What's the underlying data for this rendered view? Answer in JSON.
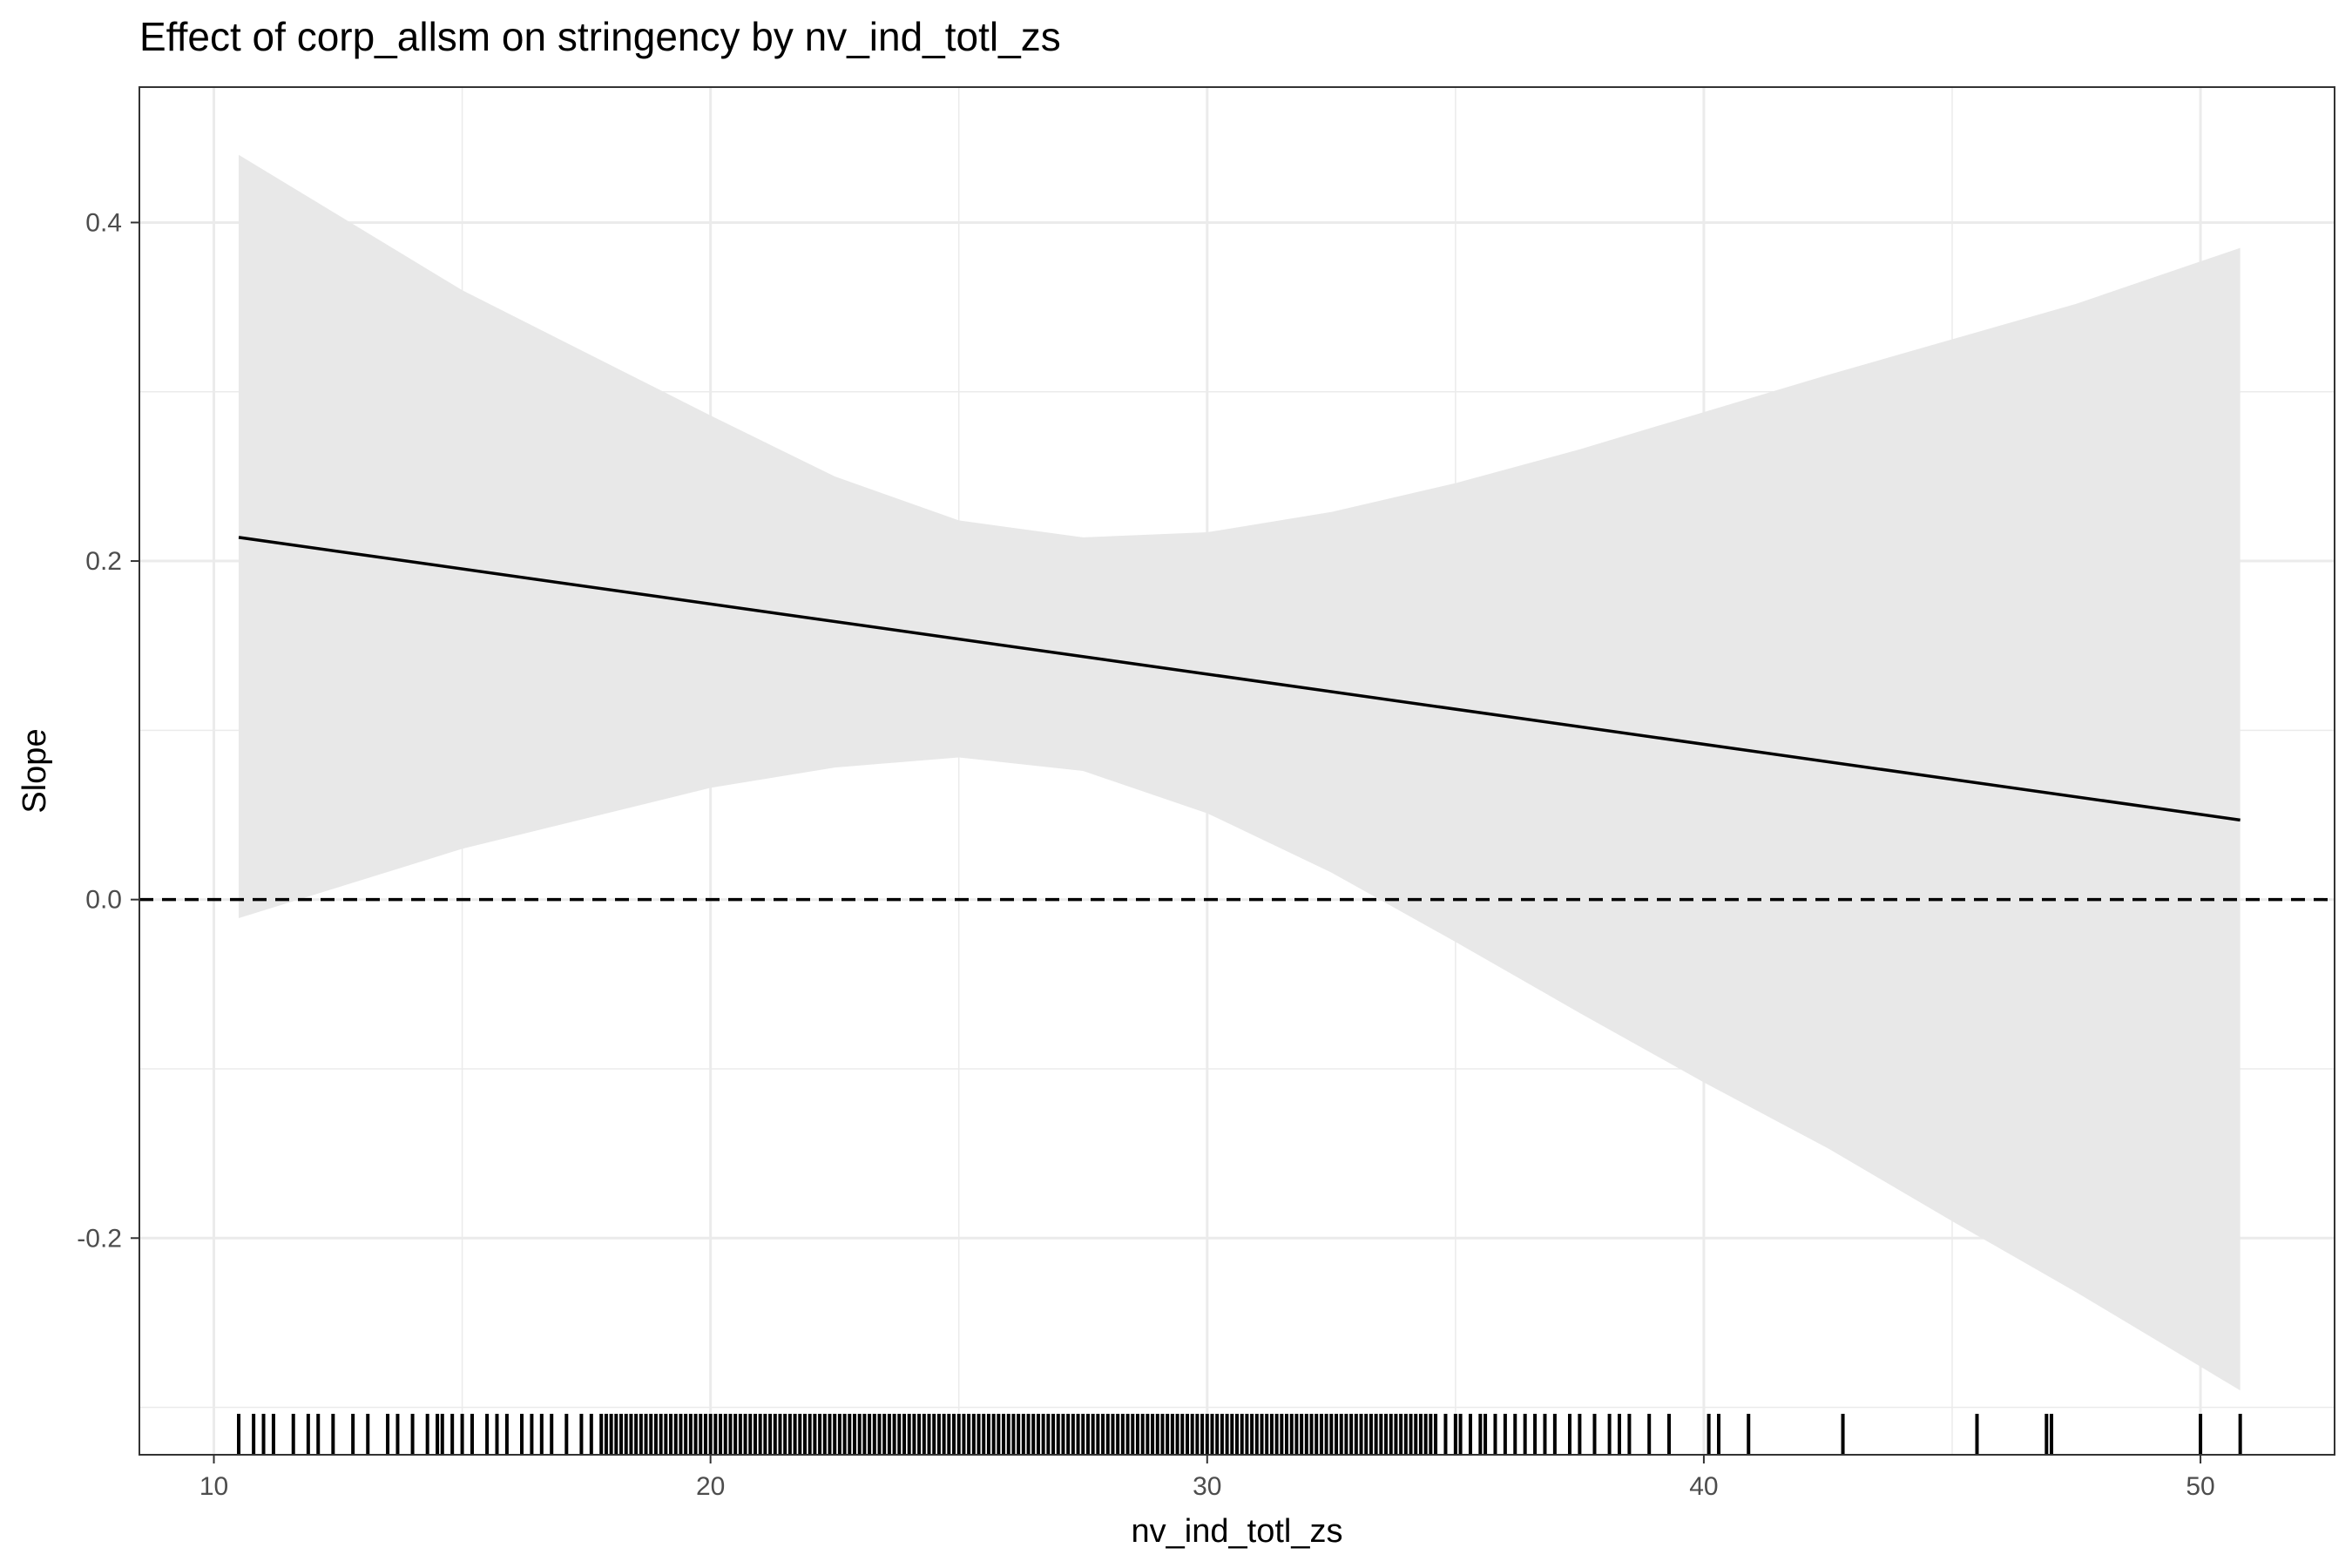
{
  "chart_data": {
    "type": "line",
    "title": "Effect of corp_allsm on stringency by nv_ind_totl_zs",
    "xlabel": "nv_ind_totl_zs",
    "ylabel": "Slope",
    "xlim": [
      8.5,
      52.7
    ],
    "ylim": [
      -0.328,
      0.48
    ],
    "x_ticks": [
      10,
      20,
      30,
      40,
      50
    ],
    "x_tick_labels": [
      "10",
      "20",
      "30",
      "40",
      "50"
    ],
    "y_ticks": [
      -0.2,
      0.0,
      0.2,
      0.4
    ],
    "y_tick_labels": [
      "-0.2",
      "0.0",
      "0.2",
      "0.4"
    ],
    "x_minor_ticks": [
      15,
      25,
      35,
      45
    ],
    "y_minor_ticks": [
      -0.3,
      -0.1,
      0.1,
      0.3
    ],
    "grid": true,
    "reference_line": {
      "y": 0.0,
      "style": "dashed"
    },
    "series": [
      {
        "type": "line",
        "color": "#000000",
        "x": [
          10.5,
          50.8
        ],
        "y": [
          0.214,
          0.047
        ]
      }
    ],
    "confidence_band": {
      "color": "#e8e8e8",
      "x": [
        10.5,
        15,
        20,
        22.5,
        25,
        27.5,
        30,
        32.5,
        35,
        37.5,
        40,
        42.5,
        45,
        47.5,
        50.8
      ],
      "lower": [
        -0.011,
        0.03,
        0.066,
        0.078,
        0.084,
        0.076,
        0.051,
        0.016,
        -0.025,
        -0.067,
        -0.108,
        -0.147,
        -0.19,
        -0.232,
        -0.29
      ],
      "upper": [
        0.44,
        0.36,
        0.286,
        0.25,
        0.224,
        0.214,
        0.217,
        0.229,
        0.246,
        0.266,
        0.288,
        0.31,
        0.331,
        0.352,
        0.385
      ]
    },
    "rug": {
      "color": "#000000",
      "x": [
        10.5,
        10.8,
        11.0,
        11.2,
        11.6,
        11.9,
        12.1,
        12.4,
        12.8,
        13.1,
        13.5,
        13.7,
        14.0,
        14.3,
        14.5,
        14.6,
        14.8,
        15.0,
        15.2,
        15.5,
        15.7,
        15.9,
        16.2,
        16.4,
        16.6,
        16.8,
        17.1,
        17.4,
        17.6,
        17.8,
        17.9,
        18.0,
        18.1,
        18.2,
        18.3,
        18.4,
        18.5,
        18.6,
        18.7,
        18.8,
        18.9,
        19.0,
        19.1,
        19.2,
        19.3,
        19.4,
        19.5,
        19.6,
        19.7,
        19.8,
        19.9,
        20.0,
        20.1,
        20.2,
        20.3,
        20.4,
        20.5,
        20.6,
        20.7,
        20.8,
        20.9,
        21.0,
        21.1,
        21.2,
        21.3,
        21.4,
        21.5,
        21.6,
        21.7,
        21.8,
        21.9,
        22.0,
        22.1,
        22.2,
        22.3,
        22.4,
        22.5,
        22.6,
        22.7,
        22.8,
        22.9,
        23.0,
        23.1,
        23.2,
        23.3,
        23.4,
        23.5,
        23.6,
        23.7,
        23.8,
        23.9,
        24.0,
        24.1,
        24.2,
        24.3,
        24.4,
        24.5,
        24.6,
        24.7,
        24.8,
        24.9,
        25.0,
        25.1,
        25.2,
        25.3,
        25.4,
        25.5,
        25.6,
        25.7,
        25.8,
        25.9,
        26.0,
        26.1,
        26.2,
        26.3,
        26.4,
        26.5,
        26.6,
        26.7,
        26.8,
        26.9,
        27.0,
        27.1,
        27.2,
        27.3,
        27.4,
        27.5,
        27.6,
        27.7,
        27.8,
        27.9,
        28.0,
        28.1,
        28.2,
        28.3,
        28.4,
        28.5,
        28.6,
        28.7,
        28.8,
        28.9,
        29.0,
        29.1,
        29.2,
        29.3,
        29.4,
        29.5,
        29.6,
        29.7,
        29.8,
        29.9,
        30.0,
        30.1,
        30.2,
        30.3,
        30.4,
        30.5,
        30.6,
        30.7,
        30.8,
        30.9,
        31.0,
        31.1,
        31.2,
        31.3,
        31.4,
        31.5,
        31.6,
        31.7,
        31.8,
        31.9,
        32.0,
        32.1,
        32.2,
        32.3,
        32.4,
        32.5,
        32.6,
        32.7,
        32.8,
        32.9,
        33.0,
        33.1,
        33.2,
        33.3,
        33.4,
        33.5,
        33.6,
        33.7,
        33.8,
        33.9,
        34.0,
        34.1,
        34.2,
        34.3,
        34.4,
        34.5,
        34.6,
        34.8,
        35.0,
        35.1,
        35.3,
        35.5,
        35.6,
        35.8,
        36.0,
        36.2,
        36.4,
        36.6,
        36.8,
        37.0,
        37.3,
        37.5,
        37.8,
        38.1,
        38.3,
        38.5,
        38.9,
        39.3,
        40.1,
        40.3,
        40.9,
        42.8,
        45.5,
        46.9,
        47.0,
        50.0,
        50.8
      ]
    }
  }
}
